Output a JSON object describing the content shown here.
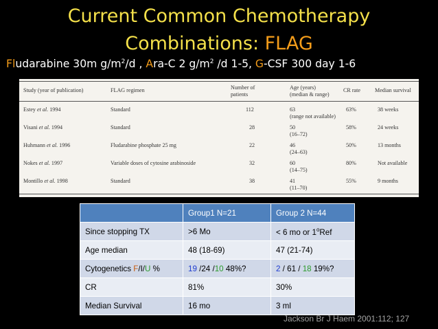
{
  "slide": {
    "title_line1": "Current Common Chemotherapy",
    "title_line2_prefix": "Combinations: ",
    "title_line2_highlight": "FLAG",
    "regimen": {
      "flu_hl": "Fl",
      "flu_rest": "udarabine 30m g/m",
      "sup1": "2",
      "flu_unit": "/d  , ",
      "ara_hl": "A",
      "ara_rest": "ra-C 2 g/m",
      "sup2": "2",
      "ara_unit": " /d 1-5, ",
      "gcsf_hl": "G",
      "gcsf_rest": "-CSF 300 day 1-6"
    },
    "citation": "Jackson Br J Haem  2001:112; 127"
  },
  "paper_table": {
    "headers": {
      "study": "Study (year of publication)",
      "regimen": "FLAG regimen",
      "patients_1": "Number of",
      "patients_2": "patients",
      "age_1": "Age (years)",
      "age_2": "(median & range)",
      "cr": "CR rate",
      "survival": "Median survival"
    },
    "rows": [
      {
        "study_a": "Estey ",
        "study_b": "et al.",
        "study_c": " 1994",
        "regimen": "Standard",
        "patients": "112",
        "age_1": "63",
        "age_2": "(range not available)",
        "cr": "63%",
        "survival": "38 weeks"
      },
      {
        "study_a": "Visani ",
        "study_b": "et al.",
        "study_c": " 1994",
        "regimen": "Standard",
        "patients": "28",
        "age_1": "50",
        "age_2": "(16–72)",
        "cr": "58%",
        "survival": "24 weeks"
      },
      {
        "study_a": "Huhmann ",
        "study_b": "et al.",
        "study_c": " 1996",
        "regimen": "Fludarabine phosphate 25 mg",
        "patients": "22",
        "age_1": "46",
        "age_2": "(24–63)",
        "cr": "50%",
        "survival": "13 months"
      },
      {
        "study_a": "Nokes ",
        "study_b": "et al.",
        "study_c": " 1997",
        "regimen": "Variable doses of cytosine arabinoside",
        "patients": "32",
        "age_1": "60",
        "age_2": "(14–75)",
        "cr": "80%",
        "survival": "Not available"
      },
      {
        "study_a": "Montillo ",
        "study_b": "et al.",
        "study_c": " 1998",
        "regimen": "Standard",
        "patients": "38",
        "age_1": "41",
        "age_2": "(11–70)",
        "cr": "55%",
        "survival": "9 months"
      }
    ]
  },
  "group_table": {
    "header_g1": "Group1   N=21",
    "header_g2": "Group 2   N=44",
    "rows": {
      "stop_label": "Since stopping TX",
      "stop_g1": ">6 Mo",
      "stop_g2_a": "< 6 mo or 1",
      "stop_g2_sup": "o",
      "stop_g2_b": "Ref",
      "age_label": "Age median",
      "age_g1": "48 (18-69)",
      "age_g2": "47 (21-74)",
      "cyto_label_a": "Cytogenetics ",
      "cyto_label_f": "F",
      "cyto_label_b": "/I/",
      "cyto_label_u": "U",
      "cyto_label_c": " %",
      "cyto_g1_f": "19",
      "cyto_g1_mid": " /24 /",
      "cyto_g1_u": "10",
      "cyto_g1_rest": "  48%?",
      "cyto_g2_f": "2",
      "cyto_g2_mid": " / 61 / ",
      "cyto_g2_u": "18",
      "cyto_g2_rest": " 19%?",
      "cr_label": "CR",
      "cr_g1": "81%",
      "cr_g2": "30%",
      "surv_label": "Median  Survival",
      "surv_g1": "16 mo",
      "surv_g2": "3 ml"
    }
  },
  "colors": {
    "title": "#f4e04a",
    "highlight": "#f39c1a",
    "table_header": "#4f81bd",
    "blue_text": "#1f3ccf",
    "green_text": "#2a9a2a"
  }
}
